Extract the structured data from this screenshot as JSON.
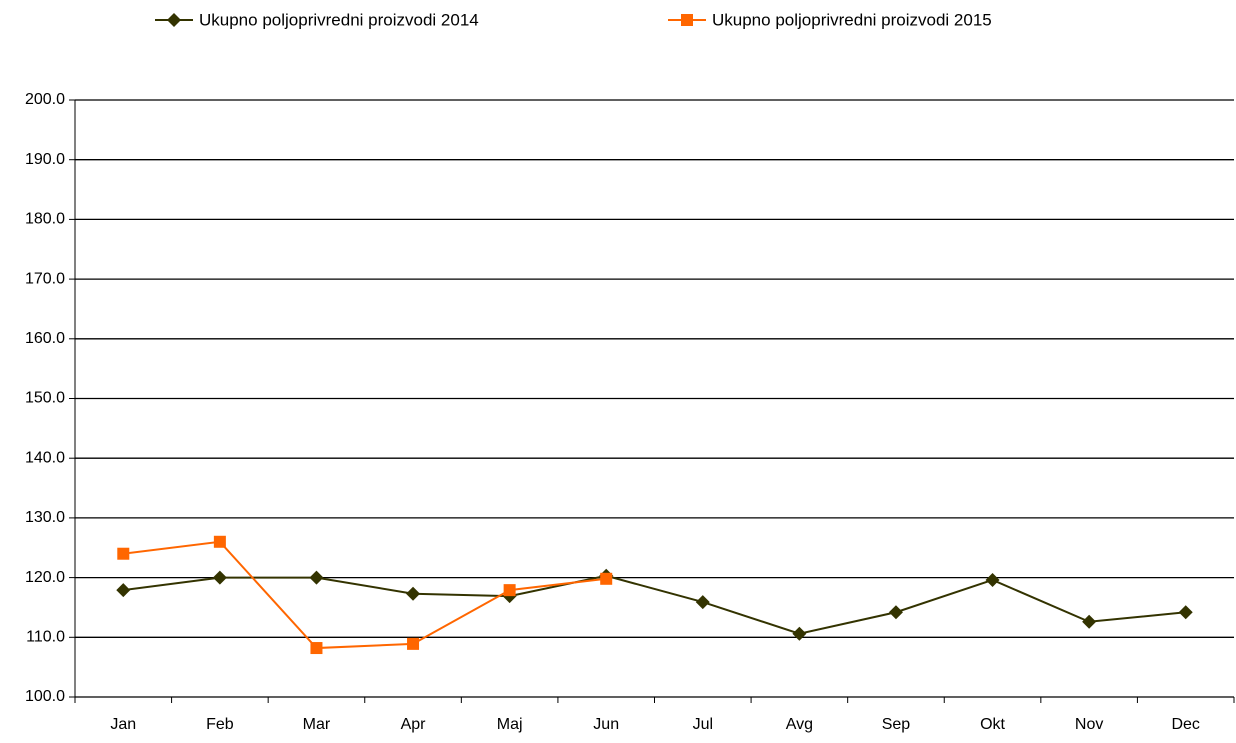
{
  "chart_data": {
    "type": "line",
    "categories": [
      "Jan",
      "Feb",
      "Mar",
      "Apr",
      "Maj",
      "Jun",
      "Jul",
      "Avg",
      "Sep",
      "Okt",
      "Nov",
      "Dec"
    ],
    "series": [
      {
        "name": "Ukupno poljoprivredni proizvodi  2014",
        "color": "#333300",
        "marker": "diamond",
        "values": [
          117.9,
          120.0,
          120.0,
          117.3,
          116.9,
          120.3,
          115.9,
          110.6,
          114.2,
          119.6,
          112.6,
          114.2
        ]
      },
      {
        "name": "Ukupno poljoprivredni proizvodi  2015",
        "color": "#ff6600",
        "marker": "square",
        "values": [
          124.0,
          126.0,
          108.2,
          108.9,
          117.9,
          119.8,
          null,
          null,
          null,
          null,
          null,
          null
        ]
      }
    ],
    "ylim": [
      100,
      200
    ],
    "yticks": [
      {
        "value": 100,
        "label": "100.0"
      },
      {
        "value": 110,
        "label": "110.0"
      },
      {
        "value": 120,
        "label": "120.0"
      },
      {
        "value": 130,
        "label": "130.0"
      },
      {
        "value": 140,
        "label": "140.0"
      },
      {
        "value": 150,
        "label": "150.0"
      },
      {
        "value": 160,
        "label": "160.0"
      },
      {
        "value": 170,
        "label": "170.0"
      },
      {
        "value": 180,
        "label": "180.0"
      },
      {
        "value": 190,
        "label": "190.0"
      },
      {
        "value": 200,
        "label": "200.0"
      }
    ],
    "grid": true,
    "legend": "top"
  }
}
